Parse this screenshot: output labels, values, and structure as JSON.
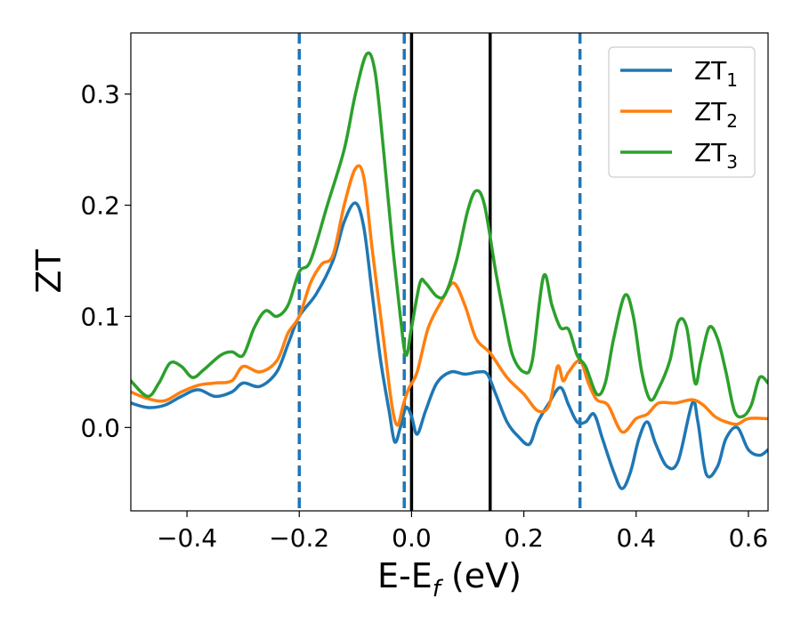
{
  "chart_data": {
    "type": "line",
    "xlabel_main": "E-E",
    "xlabel_sub": "f",
    "xlabel_unit": " (eV)",
    "ylabel": "ZT",
    "xlim": [
      -0.5,
      0.635
    ],
    "ylim": [
      -0.075,
      0.355
    ],
    "grid": false,
    "legend_position": "top-right",
    "x_ticks": [
      {
        "value": -0.4,
        "label": "−0.4"
      },
      {
        "value": -0.2,
        "label": "−0.2"
      },
      {
        "value": 0.0,
        "label": "0.0"
      },
      {
        "value": 0.2,
        "label": "0.2"
      },
      {
        "value": 0.4,
        "label": "0.4"
      },
      {
        "value": 0.6,
        "label": "0.6"
      }
    ],
    "y_ticks": [
      {
        "value": 0.0,
        "label": "0.0"
      },
      {
        "value": 0.1,
        "label": "0.1"
      },
      {
        "value": 0.2,
        "label": "0.2"
      },
      {
        "value": 0.3,
        "label": "0.3"
      }
    ],
    "vlines": [
      {
        "x": -0.2,
        "style": "dashed",
        "color": "#1f77b4"
      },
      {
        "x": -0.013,
        "style": "dashed",
        "color": "#1f77b4"
      },
      {
        "x": 0.3,
        "style": "dashed",
        "color": "#1f77b4"
      },
      {
        "x": 0.0,
        "style": "solid",
        "color": "#000000"
      },
      {
        "x": 0.14,
        "style": "solid",
        "color": "#000000"
      }
    ],
    "series": [
      {
        "name": "ZT",
        "sub": "1",
        "color": "#1f77b4",
        "points": [
          [
            -0.5,
            0.022
          ],
          [
            -0.47,
            0.018
          ],
          [
            -0.44,
            0.02
          ],
          [
            -0.41,
            0.028
          ],
          [
            -0.38,
            0.034
          ],
          [
            -0.35,
            0.028
          ],
          [
            -0.32,
            0.032
          ],
          [
            -0.3,
            0.04
          ],
          [
            -0.27,
            0.037
          ],
          [
            -0.24,
            0.05
          ],
          [
            -0.22,
            0.075
          ],
          [
            -0.2,
            0.1
          ],
          [
            -0.17,
            0.12
          ],
          [
            -0.14,
            0.15
          ],
          [
            -0.12,
            0.185
          ],
          [
            -0.1,
            0.202
          ],
          [
            -0.085,
            0.18
          ],
          [
            -0.07,
            0.12
          ],
          [
            -0.055,
            0.06
          ],
          [
            -0.04,
            0.015
          ],
          [
            -0.03,
            -0.013
          ],
          [
            -0.02,
            0.0
          ],
          [
            -0.01,
            0.018
          ],
          [
            0.0,
            0.01
          ],
          [
            0.01,
            -0.006
          ],
          [
            0.025,
            0.015
          ],
          [
            0.045,
            0.04
          ],
          [
            0.07,
            0.05
          ],
          [
            0.095,
            0.048
          ],
          [
            0.12,
            0.05
          ],
          [
            0.135,
            0.048
          ],
          [
            0.15,
            0.03
          ],
          [
            0.17,
            0.005
          ],
          [
            0.19,
            -0.008
          ],
          [
            0.21,
            -0.015
          ],
          [
            0.225,
            0.005
          ],
          [
            0.245,
            0.022
          ],
          [
            0.265,
            0.036
          ],
          [
            0.28,
            0.02
          ],
          [
            0.295,
            0.005
          ],
          [
            0.31,
            0.005
          ],
          [
            0.325,
            0.012
          ],
          [
            0.34,
            -0.01
          ],
          [
            0.36,
            -0.04
          ],
          [
            0.375,
            -0.055
          ],
          [
            0.39,
            -0.04
          ],
          [
            0.405,
            -0.01
          ],
          [
            0.42,
            0.005
          ],
          [
            0.435,
            -0.015
          ],
          [
            0.455,
            -0.035
          ],
          [
            0.475,
            -0.03
          ],
          [
            0.5,
            0.022
          ],
          [
            0.51,
            0.005
          ],
          [
            0.525,
            -0.042
          ],
          [
            0.545,
            -0.035
          ],
          [
            0.56,
            -0.01
          ],
          [
            0.58,
            0.0
          ],
          [
            0.6,
            -0.02
          ],
          [
            0.62,
            -0.025
          ],
          [
            0.635,
            -0.02
          ]
        ]
      },
      {
        "name": "ZT",
        "sub": "2",
        "color": "#ff7f0e",
        "points": [
          [
            -0.5,
            0.032
          ],
          [
            -0.47,
            0.026
          ],
          [
            -0.44,
            0.024
          ],
          [
            -0.41,
            0.032
          ],
          [
            -0.38,
            0.038
          ],
          [
            -0.35,
            0.04
          ],
          [
            -0.32,
            0.042
          ],
          [
            -0.3,
            0.055
          ],
          [
            -0.27,
            0.05
          ],
          [
            -0.24,
            0.06
          ],
          [
            -0.22,
            0.085
          ],
          [
            -0.2,
            0.1
          ],
          [
            -0.18,
            0.13
          ],
          [
            -0.16,
            0.147
          ],
          [
            -0.14,
            0.155
          ],
          [
            -0.12,
            0.2
          ],
          [
            -0.1,
            0.233
          ],
          [
            -0.085,
            0.225
          ],
          [
            -0.07,
            0.16
          ],
          [
            -0.05,
            0.08
          ],
          [
            -0.035,
            0.02
          ],
          [
            -0.025,
            0.002
          ],
          [
            -0.015,
            0.02
          ],
          [
            -0.005,
            0.035
          ],
          [
            0.01,
            0.05
          ],
          [
            0.03,
            0.09
          ],
          [
            0.055,
            0.115
          ],
          [
            0.075,
            0.13
          ],
          [
            0.095,
            0.11
          ],
          [
            0.115,
            0.08
          ],
          [
            0.14,
            0.067
          ],
          [
            0.17,
            0.045
          ],
          [
            0.2,
            0.03
          ],
          [
            0.225,
            0.015
          ],
          [
            0.245,
            0.02
          ],
          [
            0.26,
            0.055
          ],
          [
            0.27,
            0.042
          ],
          [
            0.28,
            0.05
          ],
          [
            0.3,
            0.06
          ],
          [
            0.315,
            0.04
          ],
          [
            0.33,
            0.025
          ],
          [
            0.35,
            0.02
          ],
          [
            0.375,
            -0.004
          ],
          [
            0.4,
            0.008
          ],
          [
            0.42,
            0.012
          ],
          [
            0.44,
            0.022
          ],
          [
            0.47,
            0.022
          ],
          [
            0.5,
            0.025
          ],
          [
            0.52,
            0.02
          ],
          [
            0.54,
            0.01
          ],
          [
            0.56,
            0.005
          ],
          [
            0.58,
            0.003
          ],
          [
            0.6,
            0.008
          ],
          [
            0.635,
            0.008
          ]
        ]
      },
      {
        "name": "ZT",
        "sub": "3",
        "color": "#2ca02c",
        "points": [
          [
            -0.5,
            0.042
          ],
          [
            -0.47,
            0.028
          ],
          [
            -0.45,
            0.04
          ],
          [
            -0.43,
            0.058
          ],
          [
            -0.41,
            0.055
          ],
          [
            -0.39,
            0.045
          ],
          [
            -0.37,
            0.052
          ],
          [
            -0.34,
            0.065
          ],
          [
            -0.32,
            0.068
          ],
          [
            -0.3,
            0.065
          ],
          [
            -0.28,
            0.09
          ],
          [
            -0.26,
            0.105
          ],
          [
            -0.24,
            0.1
          ],
          [
            -0.22,
            0.11
          ],
          [
            -0.2,
            0.14
          ],
          [
            -0.18,
            0.15
          ],
          [
            -0.15,
            0.2
          ],
          [
            -0.12,
            0.25
          ],
          [
            -0.1,
            0.3
          ],
          [
            -0.08,
            0.336
          ],
          [
            -0.065,
            0.32
          ],
          [
            -0.05,
            0.25
          ],
          [
            -0.035,
            0.17
          ],
          [
            -0.02,
            0.1
          ],
          [
            -0.01,
            0.065
          ],
          [
            0.0,
            0.09
          ],
          [
            0.015,
            0.13
          ],
          [
            0.025,
            0.13
          ],
          [
            0.045,
            0.118
          ],
          [
            0.06,
            0.12
          ],
          [
            0.08,
            0.15
          ],
          [
            0.1,
            0.195
          ],
          [
            0.115,
            0.213
          ],
          [
            0.13,
            0.2
          ],
          [
            0.15,
            0.14
          ],
          [
            0.165,
            0.1
          ],
          [
            0.18,
            0.065
          ],
          [
            0.2,
            0.05
          ],
          [
            0.215,
            0.06
          ],
          [
            0.235,
            0.136
          ],
          [
            0.25,
            0.11
          ],
          [
            0.265,
            0.09
          ],
          [
            0.28,
            0.088
          ],
          [
            0.295,
            0.065
          ],
          [
            0.31,
            0.055
          ],
          [
            0.33,
            0.03
          ],
          [
            0.345,
            0.04
          ],
          [
            0.36,
            0.08
          ],
          [
            0.38,
            0.119
          ],
          [
            0.395,
            0.1
          ],
          [
            0.41,
            0.05
          ],
          [
            0.425,
            0.025
          ],
          [
            0.44,
            0.035
          ],
          [
            0.46,
            0.06
          ],
          [
            0.475,
            0.095
          ],
          [
            0.49,
            0.09
          ],
          [
            0.505,
            0.04
          ],
          [
            0.515,
            0.06
          ],
          [
            0.53,
            0.09
          ],
          [
            0.545,
            0.08
          ],
          [
            0.56,
            0.05
          ],
          [
            0.575,
            0.015
          ],
          [
            0.59,
            0.01
          ],
          [
            0.605,
            0.02
          ],
          [
            0.62,
            0.045
          ],
          [
            0.635,
            0.04
          ]
        ]
      }
    ]
  }
}
